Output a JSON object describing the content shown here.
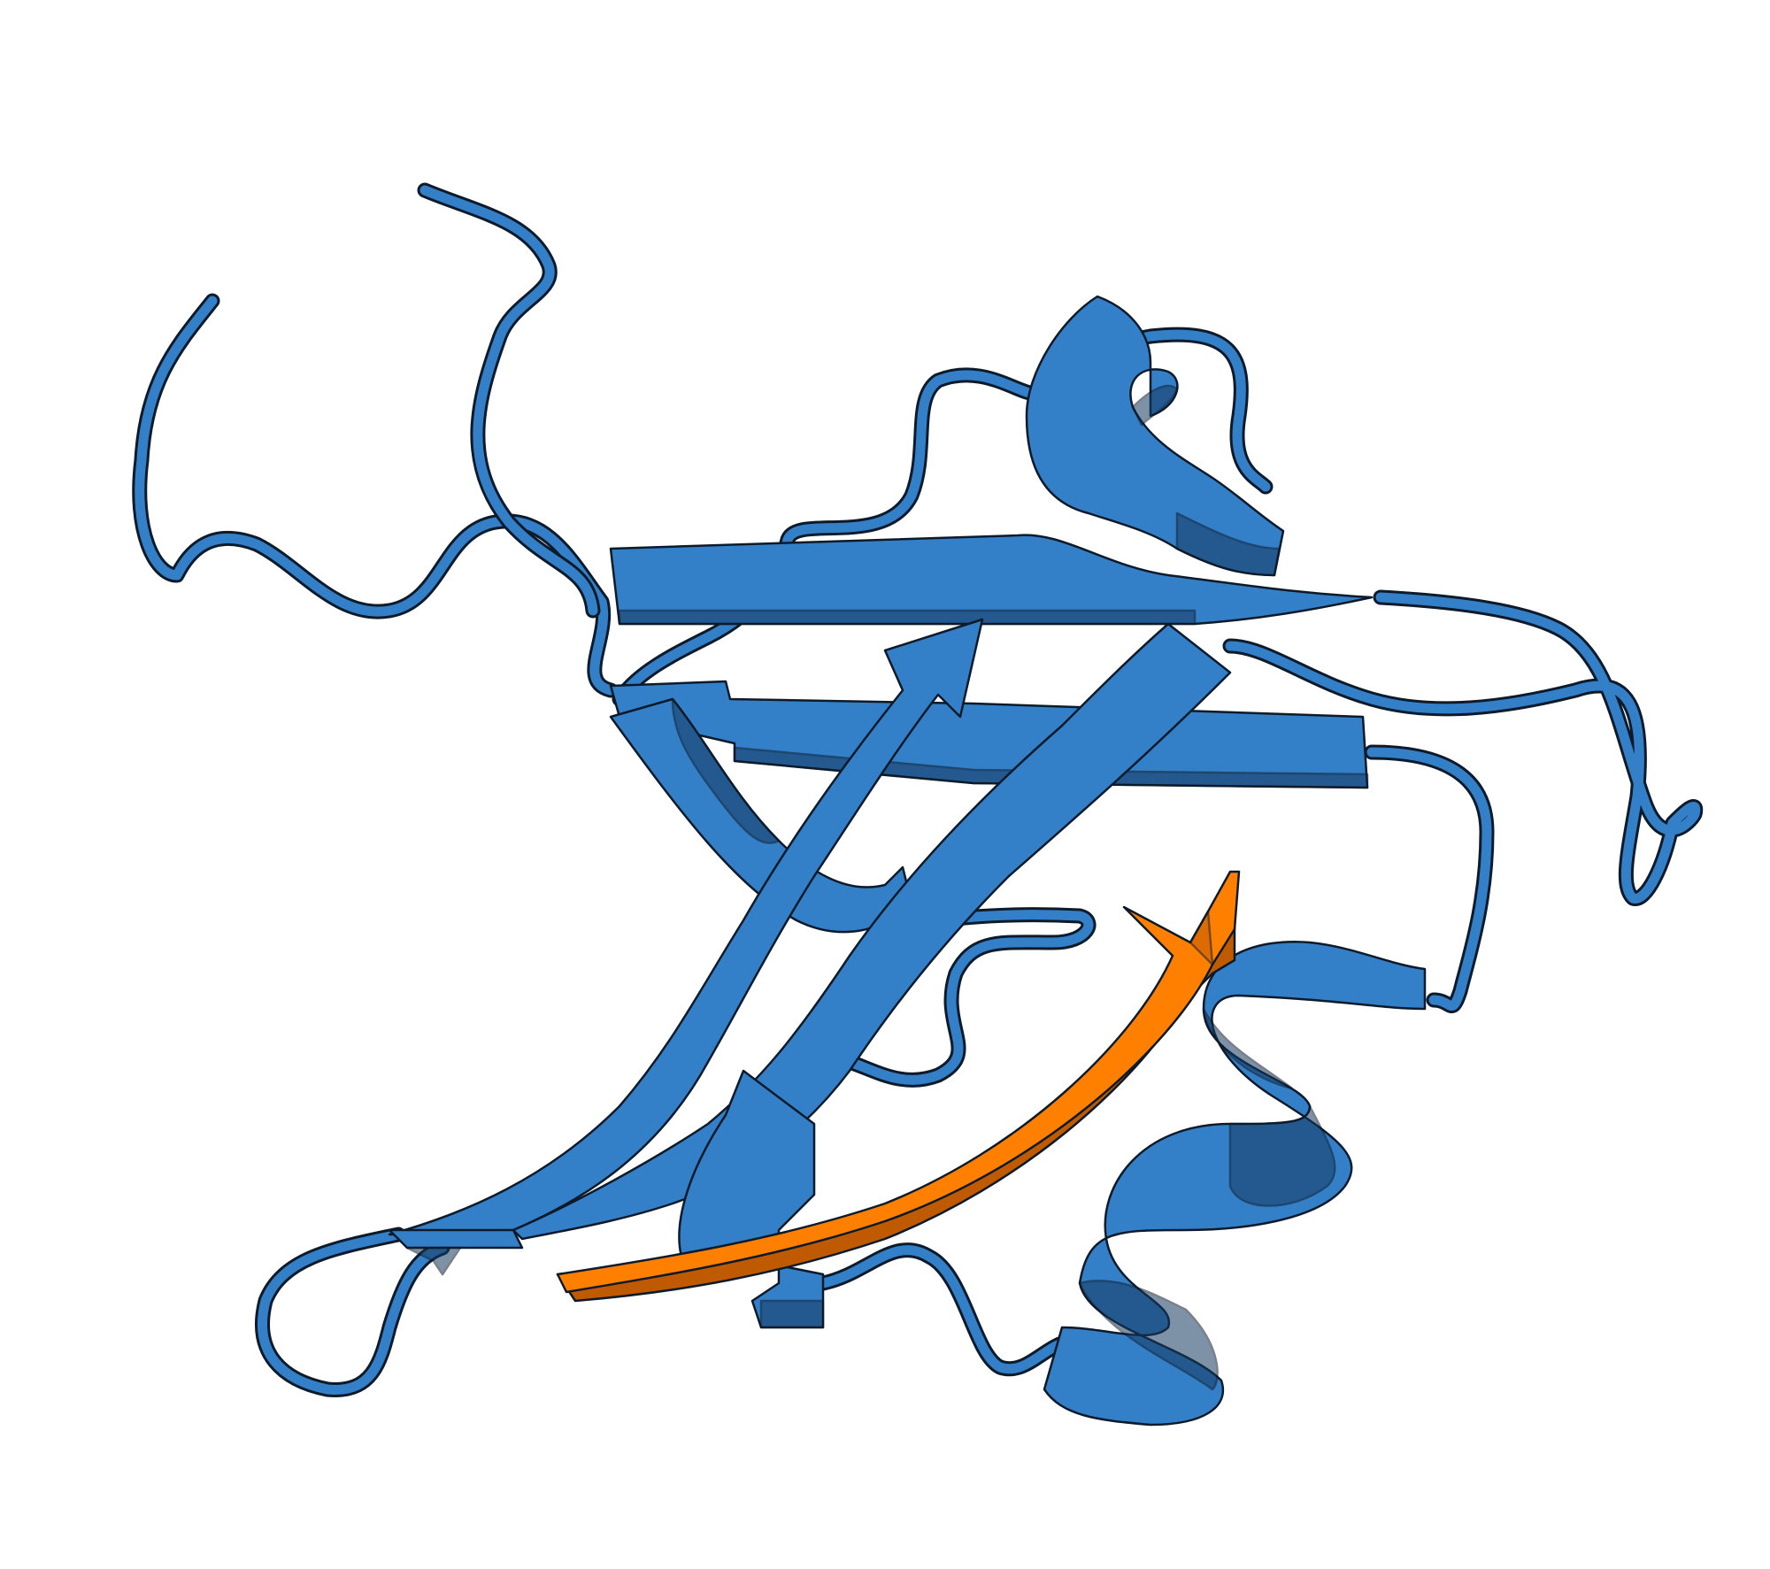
{
  "figure": {
    "kind": "protein-ribbon-render",
    "background": "#ffffff",
    "colors": {
      "protein": "#3480c8",
      "protein_shadow": "#1c4d7e",
      "protein_dark": "#163a60",
      "highlight_strand": "#ff8000",
      "highlight_shadow": "#c05a00",
      "outline": "#0c1a2a"
    },
    "elements": [
      {
        "name": "beta-strand",
        "count": 6,
        "color": "protein"
      },
      {
        "name": "alpha-helix",
        "count": 2,
        "color": "protein"
      },
      {
        "name": "coil-loop",
        "count": 8,
        "color": "protein"
      },
      {
        "name": "highlighted-beta-strand",
        "count": 1,
        "color": "highlight_strand"
      }
    ]
  }
}
